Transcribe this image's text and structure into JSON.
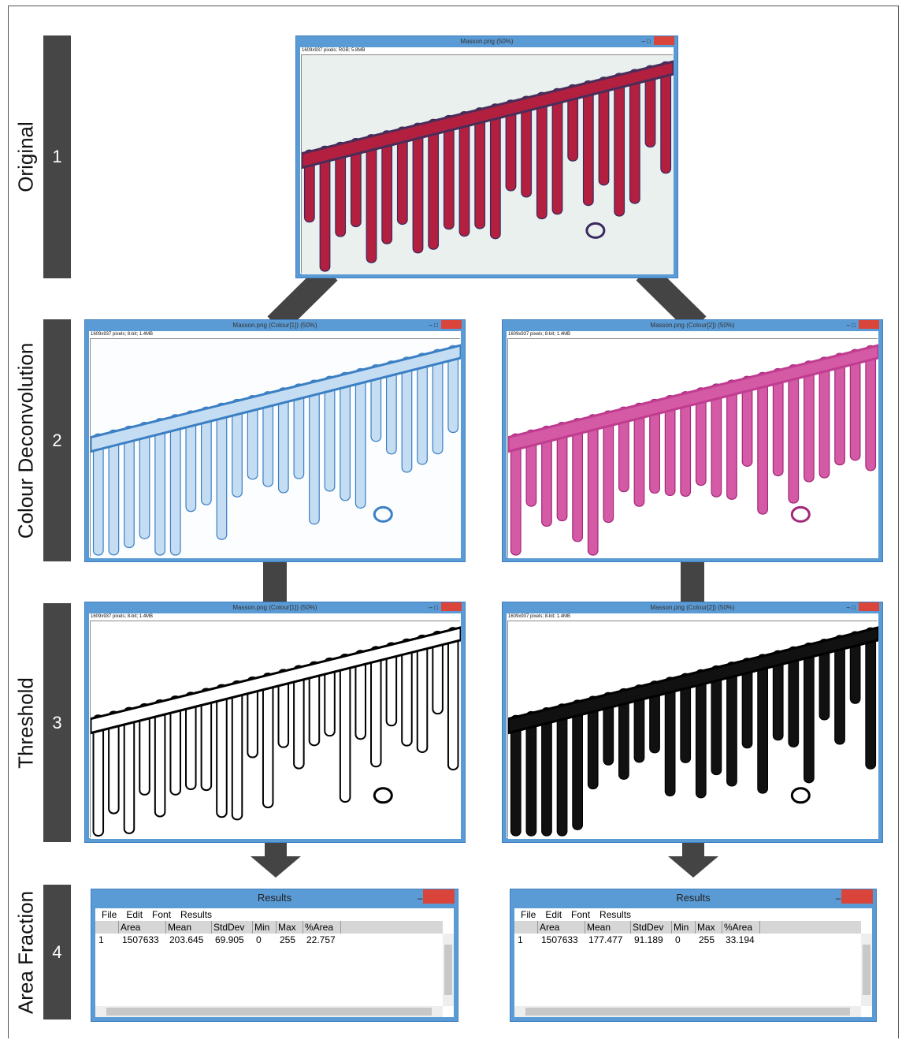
{
  "steps": [
    {
      "number": 1,
      "label": "Original"
    },
    {
      "number": 2,
      "label": "Colour Deconvolution"
    },
    {
      "number": 3,
      "label": "Threshold"
    },
    {
      "number": 4,
      "label": "Area Fraction"
    }
  ],
  "windows": [
    {
      "title": "Masson.png (50%)",
      "info": "1609x937 pixels; RGB; 5.8MB"
    },
    {
      "title": "Masson.png (Colour[1]) (50%)",
      "info": "1609x937 pixels; 8-bit; 1.4MB"
    },
    {
      "title": "Masson.png (Colour[2]) (50%)",
      "info": "1609x937 pixels; 8-bit; 1.4MB"
    },
    {
      "title": "Masson.png (Colour[1]) (50%)",
      "info": "1609x937 pixels; 8-bit; 1.4MB"
    },
    {
      "title": "Masson.png (Colour[2]) (50%)",
      "info": "1609x937 pixels; 8-bit; 1.4MB"
    }
  ],
  "results": [
    {
      "title": "Results",
      "menu": [
        "File",
        "Edit",
        "Font",
        "Results"
      ],
      "columns": [
        "Area",
        "Mean",
        "StdDev",
        "Min",
        "Max",
        "%Area"
      ],
      "rows": [
        [
          1,
          1507633,
          203.645,
          69.905,
          0,
          255,
          22.757
        ]
      ]
    },
    {
      "title": "Results",
      "menu": [
        "File",
        "Edit",
        "Font",
        "Results"
      ],
      "columns": [
        "Area",
        "Mean",
        "StdDev",
        "Min",
        "Max",
        "%Area"
      ],
      "rows": [
        [
          1,
          1507633,
          177.477,
          91.189,
          0,
          255,
          33.194
        ]
      ]
    }
  ]
}
